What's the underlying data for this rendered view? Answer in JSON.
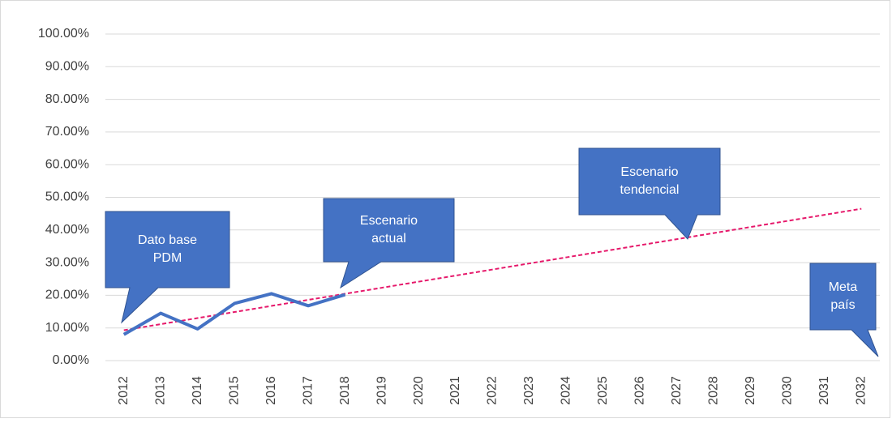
{
  "chart_data": {
    "type": "line",
    "categories": [
      "2012",
      "2013",
      "2014",
      "2015",
      "2016",
      "2017",
      "2018",
      "2019",
      "2020",
      "2021",
      "2022",
      "2023",
      "2024",
      "2025",
      "2026",
      "2027",
      "2028",
      "2029",
      "2030",
      "2031",
      "2032"
    ],
    "series": [
      {
        "color": "#4472c4",
        "values": [
          8,
          14.5,
          9.7,
          17.5,
          20.5,
          16.8,
          20.2,
          null,
          null,
          null,
          null,
          null,
          null,
          null,
          null,
          null,
          null,
          null,
          null,
          null,
          null
        ]
      }
    ],
    "trendline": {
      "color": "#e6196b",
      "values": [
        9.3,
        11.16,
        13.02,
        14.88,
        16.74,
        18.6,
        20.46,
        22.32,
        24.18,
        26.04,
        27.9,
        29.76,
        31.62,
        33.48,
        35.34,
        37.2,
        39.06,
        40.92,
        42.78,
        44.64,
        46.5
      ]
    },
    "ylim": [
      0,
      100
    ],
    "yticks": [
      {
        "value": 0,
        "label": "0.00%"
      },
      {
        "value": 10,
        "label": "10.00%"
      },
      {
        "value": 20,
        "label": "20.00%"
      },
      {
        "value": 30,
        "label": "30.00%"
      },
      {
        "value": 40,
        "label": "40.00%"
      },
      {
        "value": 50,
        "label": "50.00%"
      },
      {
        "value": 60,
        "label": "60.00%"
      },
      {
        "value": 70,
        "label": "70.00%"
      },
      {
        "value": 80,
        "label": "80.00%"
      },
      {
        "value": 90,
        "label": "90.00%"
      },
      {
        "value": 100,
        "label": "100.00%"
      }
    ],
    "grid": true,
    "annotations": [
      {
        "lines": [
          "Dato base",
          "PDM"
        ]
      },
      {
        "lines": [
          "Escenario",
          "actual"
        ]
      },
      {
        "lines": [
          "Escenario",
          "tendencial"
        ]
      },
      {
        "lines": [
          "Meta",
          "país"
        ]
      }
    ]
  }
}
